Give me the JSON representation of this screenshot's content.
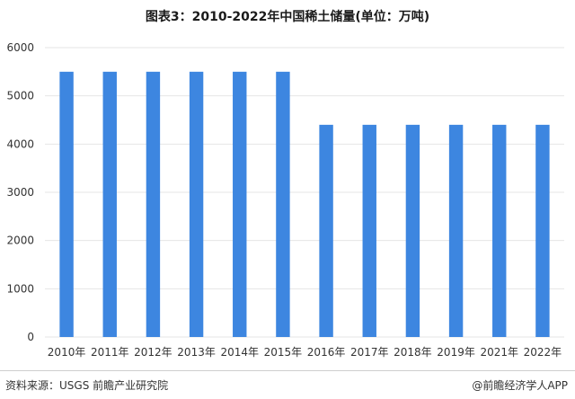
{
  "colors": {
    "bar": "#3d86e0",
    "grid": "#e6e6e6",
    "axis_text": "#333333",
    "title": "#1a1a1a"
  },
  "header": {
    "title": "图表3：2010-2022年中国稀土储量(单位：万吨)"
  },
  "footer": {
    "source": "资料来源：USGS 前瞻产业研究院",
    "credit": "@前瞻经济学人APP"
  },
  "chart_data": {
    "type": "bar",
    "title": "图表3：2010-2022年中国稀土储量(单位：万吨)",
    "categories": [
      "2010年",
      "2011年",
      "2012年",
      "2013年",
      "2014年",
      "2015年",
      "2016年",
      "2017年",
      "2018年",
      "2019年",
      "2021年",
      "2022年"
    ],
    "series": [
      {
        "values": [
          5500,
          5500,
          5500,
          5500,
          5500,
          5500,
          4400,
          4400,
          4400,
          4400,
          4400,
          4400
        ]
      }
    ],
    "ylim": [
      0,
      6000
    ],
    "yticks": [
      0,
      1000,
      2000,
      3000,
      4000,
      5000,
      6000
    ],
    "grid": true,
    "xlabel": "",
    "ylabel": ""
  }
}
